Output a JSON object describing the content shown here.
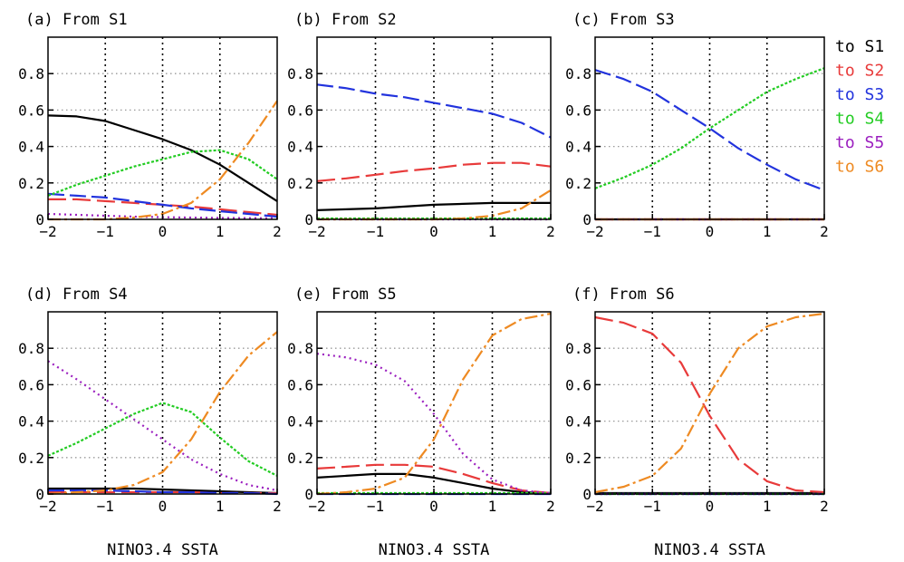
{
  "figure": {
    "legend": [
      {
        "label": "to S1",
        "color": "#000000"
      },
      {
        "label": "to S2",
        "color": "#e83a3a"
      },
      {
        "label": "to S3",
        "color": "#2233dd"
      },
      {
        "label": "to S4",
        "color": "#22cc22"
      },
      {
        "label": "to S5",
        "color": "#9b1fbf"
      },
      {
        "label": "to S6",
        "color": "#ee8a22"
      }
    ],
    "xlabel": "NINO3.4 SSTA"
  },
  "chart_data": [
    {
      "type": "line",
      "title": "(a) From S1",
      "xlim": [
        -2,
        2
      ],
      "ylim": [
        0,
        1
      ],
      "xticks": [
        "-2",
        "-1",
        "0",
        "1",
        "2"
      ],
      "yticks": [
        "0",
        "0.2",
        "0.4",
        "0.6",
        "0.8"
      ],
      "x": [
        -2,
        -1.5,
        -1,
        -0.5,
        0,
        0.5,
        1,
        1.5,
        2
      ],
      "series": [
        {
          "name": "to S1",
          "values": [
            0.57,
            0.565,
            0.54,
            0.49,
            0.44,
            0.38,
            0.3,
            0.2,
            0.1
          ]
        },
        {
          "name": "to S2",
          "values": [
            0.11,
            0.11,
            0.1,
            0.09,
            0.08,
            0.07,
            0.055,
            0.04,
            0.025
          ]
        },
        {
          "name": "to S3",
          "values": [
            0.14,
            0.13,
            0.12,
            0.1,
            0.08,
            0.06,
            0.045,
            0.03,
            0.015
          ]
        },
        {
          "name": "to S4",
          "values": [
            0.13,
            0.19,
            0.24,
            0.29,
            0.33,
            0.37,
            0.38,
            0.33,
            0.22
          ]
        },
        {
          "name": "to S5",
          "values": [
            0.03,
            0.025,
            0.02,
            0.015,
            0.012,
            0.01,
            0.008,
            0.007,
            0.006
          ]
        },
        {
          "name": "to S6",
          "values": [
            0.0,
            0.0,
            0.0,
            0.01,
            0.03,
            0.09,
            0.22,
            0.42,
            0.65
          ]
        }
      ]
    },
    {
      "type": "line",
      "title": "(b) From S2",
      "xlim": [
        -2,
        2
      ],
      "ylim": [
        0,
        1
      ],
      "xticks": [
        "-2",
        "-1",
        "0",
        "1",
        "2"
      ],
      "yticks": [
        "0",
        "0.2",
        "0.4",
        "0.6",
        "0.8"
      ],
      "x": [
        -2,
        -1.5,
        -1,
        -0.5,
        0,
        0.5,
        1,
        1.5,
        2
      ],
      "series": [
        {
          "name": "to S1",
          "values": [
            0.05,
            0.055,
            0.06,
            0.07,
            0.08,
            0.085,
            0.09,
            0.09,
            0.09
          ]
        },
        {
          "name": "to S2",
          "values": [
            0.21,
            0.225,
            0.245,
            0.265,
            0.28,
            0.3,
            0.31,
            0.31,
            0.29
          ]
        },
        {
          "name": "to S3",
          "values": [
            0.74,
            0.72,
            0.69,
            0.67,
            0.64,
            0.61,
            0.58,
            0.53,
            0.45
          ]
        },
        {
          "name": "to S4",
          "values": [
            0.005,
            0.005,
            0.005,
            0.005,
            0.005,
            0.005,
            0.005,
            0.005,
            0.005
          ]
        },
        {
          "name": "to S5",
          "values": [
            0.0,
            0.0,
            0.0,
            0.0,
            0.0,
            0.0,
            0.0,
            0.0,
            0.0
          ]
        },
        {
          "name": "to S6",
          "values": [
            0.0,
            0.0,
            0.0,
            0.0,
            0.0,
            0.005,
            0.02,
            0.06,
            0.16
          ]
        }
      ]
    },
    {
      "type": "line",
      "title": "(c) From S3",
      "xlim": [
        -2,
        2
      ],
      "ylim": [
        0,
        1
      ],
      "xticks": [
        "-2",
        "-1",
        "0",
        "1",
        "2"
      ],
      "yticks": [
        "0",
        "0.2",
        "0.4",
        "0.6",
        "0.8"
      ],
      "x": [
        -2,
        -1.5,
        -1,
        -0.5,
        0,
        0.5,
        1,
        1.5,
        2
      ],
      "series": [
        {
          "name": "to S1",
          "values": [
            0.0,
            0.0,
            0.0,
            0.0,
            0.0,
            0.0,
            0.0,
            0.0,
            0.0
          ]
        },
        {
          "name": "to S2",
          "values": [
            0.0,
            0.0,
            0.0,
            0.0,
            0.0,
            0.0,
            0.0,
            0.0,
            0.0
          ]
        },
        {
          "name": "to S3",
          "values": [
            0.82,
            0.77,
            0.7,
            0.6,
            0.5,
            0.39,
            0.3,
            0.22,
            0.16
          ]
        },
        {
          "name": "to S4",
          "values": [
            0.17,
            0.23,
            0.3,
            0.39,
            0.5,
            0.6,
            0.7,
            0.77,
            0.83
          ]
        },
        {
          "name": "to S5",
          "values": [
            0.0,
            0.0,
            0.0,
            0.0,
            0.0,
            0.0,
            0.0,
            0.0,
            0.0
          ]
        },
        {
          "name": "to S6",
          "values": [
            0.0,
            0.0,
            0.0,
            0.0,
            0.0,
            0.0,
            0.0,
            0.0,
            0.0
          ]
        }
      ]
    },
    {
      "type": "line",
      "title": "(d) From S4",
      "xlim": [
        -2,
        2
      ],
      "ylim": [
        0,
        1
      ],
      "xticks": [
        "-2",
        "-1",
        "0",
        "1",
        "2"
      ],
      "yticks": [
        "0",
        "0.2",
        "0.4",
        "0.6",
        "0.8"
      ],
      "x": [
        -2,
        -1.5,
        -1,
        -0.5,
        0,
        0.5,
        1,
        1.5,
        2
      ],
      "series": [
        {
          "name": "to S1",
          "values": [
            0.03,
            0.03,
            0.03,
            0.03,
            0.025,
            0.02,
            0.015,
            0.01,
            0.005
          ]
        },
        {
          "name": "to S2",
          "values": [
            0.01,
            0.01,
            0.01,
            0.01,
            0.01,
            0.01,
            0.005,
            0.005,
            0.005
          ]
        },
        {
          "name": "to S3",
          "values": [
            0.02,
            0.02,
            0.02,
            0.015,
            0.01,
            0.01,
            0.005,
            0.005,
            0.0
          ]
        },
        {
          "name": "to S4",
          "values": [
            0.21,
            0.28,
            0.36,
            0.44,
            0.5,
            0.45,
            0.31,
            0.18,
            0.1
          ]
        },
        {
          "name": "to S5",
          "values": [
            0.73,
            0.63,
            0.52,
            0.41,
            0.3,
            0.19,
            0.11,
            0.05,
            0.02
          ]
        },
        {
          "name": "to S6",
          "values": [
            0.0,
            0.01,
            0.02,
            0.05,
            0.12,
            0.3,
            0.56,
            0.76,
            0.89
          ]
        }
      ]
    },
    {
      "type": "line",
      "title": "(e) From S5",
      "xlim": [
        -2,
        2
      ],
      "ylim": [
        0,
        1
      ],
      "xticks": [
        "-2",
        "-1",
        "0",
        "1",
        "2"
      ],
      "yticks": [
        "0",
        "0.2",
        "0.4",
        "0.6",
        "0.8"
      ],
      "x": [
        -2,
        -1.5,
        -1,
        -0.5,
        0,
        0.5,
        1,
        1.5,
        2
      ],
      "series": [
        {
          "name": "to S1",
          "values": [
            0.09,
            0.1,
            0.11,
            0.11,
            0.09,
            0.06,
            0.03,
            0.01,
            0.005
          ]
        },
        {
          "name": "to S2",
          "values": [
            0.14,
            0.15,
            0.16,
            0.16,
            0.15,
            0.11,
            0.06,
            0.02,
            0.005
          ]
        },
        {
          "name": "to S3",
          "values": [
            0.0,
            0.0,
            0.0,
            0.0,
            0.0,
            0.0,
            0.0,
            0.0,
            0.0
          ]
        },
        {
          "name": "to S4",
          "values": [
            0.005,
            0.005,
            0.005,
            0.005,
            0.005,
            0.005,
            0.005,
            0.005,
            0.005
          ]
        },
        {
          "name": "to S5",
          "values": [
            0.77,
            0.75,
            0.71,
            0.62,
            0.44,
            0.22,
            0.08,
            0.02,
            0.005
          ]
        },
        {
          "name": "to S6",
          "values": [
            0.0,
            0.01,
            0.03,
            0.09,
            0.3,
            0.63,
            0.87,
            0.96,
            0.99
          ]
        }
      ]
    },
    {
      "type": "line",
      "title": "(f) From S6",
      "xlim": [
        -2,
        2
      ],
      "ylim": [
        0,
        1
      ],
      "xticks": [
        "-2",
        "-1",
        "0",
        "1",
        "2"
      ],
      "yticks": [
        "0",
        "0.2",
        "0.4",
        "0.6",
        "0.8"
      ],
      "x": [
        -2,
        -1.5,
        -1,
        -0.5,
        0,
        0.5,
        1,
        1.5,
        2
      ],
      "series": [
        {
          "name": "to S1",
          "values": [
            0.005,
            0.005,
            0.005,
            0.005,
            0.005,
            0.005,
            0.005,
            0.005,
            0.005
          ]
        },
        {
          "name": "to S2",
          "values": [
            0.97,
            0.94,
            0.88,
            0.72,
            0.43,
            0.19,
            0.07,
            0.02,
            0.01
          ]
        },
        {
          "name": "to S3",
          "values": [
            0.0,
            0.0,
            0.0,
            0.0,
            0.0,
            0.0,
            0.0,
            0.0,
            0.0
          ]
        },
        {
          "name": "to S4",
          "values": [
            0.0,
            0.0,
            0.0,
            0.0,
            0.0,
            0.0,
            0.0,
            0.0,
            0.0
          ]
        },
        {
          "name": "to S5",
          "values": [
            0.0,
            0.0,
            0.0,
            0.0,
            0.0,
            0.0,
            0.0,
            0.0,
            0.0
          ]
        },
        {
          "name": "to S6",
          "values": [
            0.01,
            0.04,
            0.1,
            0.25,
            0.55,
            0.8,
            0.92,
            0.97,
            0.99
          ]
        }
      ]
    }
  ]
}
